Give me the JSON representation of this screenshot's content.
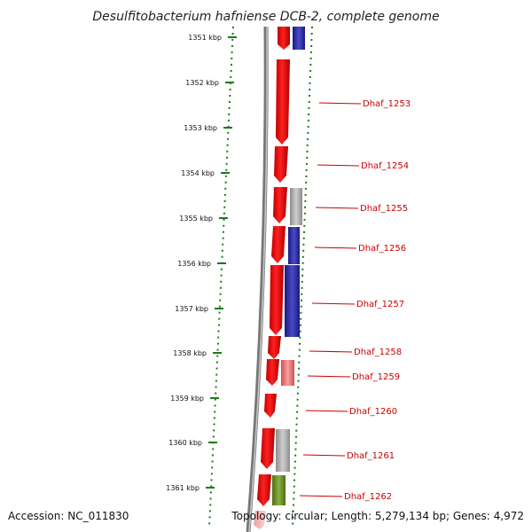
{
  "title": "Desulfitobacterium hafniense DCB-2, complete genome",
  "footer": {
    "accession": "Accession: NC_011830",
    "topology": "Topology: circular; Length: 5,279,134 bp; Genes: 4,972"
  },
  "colors": {
    "forward_cds": "#ff0000",
    "reverse_blue": "#2a2aa0",
    "reverse_grey": "#a8a8a8",
    "reverse_pink": "#e87878",
    "reverse_green": "#6b8e23",
    "ruler_dots": "#1a7a1a",
    "label_red": "#cc0000"
  },
  "ruler_ticks": [
    "1351 kbp",
    "1352 kbp",
    "1353 kbp",
    "1354 kbp",
    "1355 kbp",
    "1356 kbp",
    "1357 kbp",
    "1358 kbp",
    "1359 kbp",
    "1360 kbp",
    "1361 kbp"
  ],
  "gene_labels": [
    "Dhaf_1253",
    "Dhaf_1254",
    "Dhaf_1255",
    "Dhaf_1256",
    "Dhaf_1257",
    "Dhaf_1258",
    "Dhaf_1259",
    "Dhaf_1260",
    "Dhaf_1261",
    "Dhaf_1262"
  ]
}
